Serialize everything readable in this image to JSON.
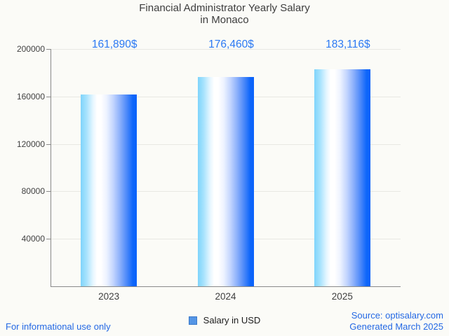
{
  "title": {
    "line1": "Financial Administrator Yearly Salary",
    "line2": "in Monaco"
  },
  "chart_data": {
    "type": "bar",
    "title": "Financial Administrator Yearly Salary in Monaco",
    "categories": [
      "2023",
      "2024",
      "2025"
    ],
    "values": [
      161890,
      176460,
      183116
    ],
    "value_labels": [
      "161,890$",
      "176,460$",
      "183,116$"
    ],
    "series_name": "Salary in USD",
    "xlabel": "",
    "ylabel": "",
    "ylim": [
      0,
      200000
    ],
    "yticks": [
      40000,
      80000,
      120000,
      160000,
      200000
    ],
    "ytick_labels": [
      "40000",
      "80000",
      "120000",
      "160000",
      "200000"
    ],
    "grid": true,
    "legend_position": "bottom",
    "bar_color_gradient": [
      "#7fd4fb",
      "#ffffff",
      "#0a62fb"
    ],
    "value_label_color": "#2b79f3"
  },
  "legend": {
    "label": "Salary in USD",
    "marker_color": "#5596e6"
  },
  "footer": {
    "left_note": "For informational use only",
    "source": "Source: optisalary.com",
    "generated": "Generated March 2025"
  },
  "colors": {
    "background": "#fbfbf7",
    "axis": "#8a8a8a",
    "gridline": "#e8e8e3",
    "title_text": "#3d3d3d",
    "tick_text": "#424242",
    "footer_link": "#2368e4"
  }
}
